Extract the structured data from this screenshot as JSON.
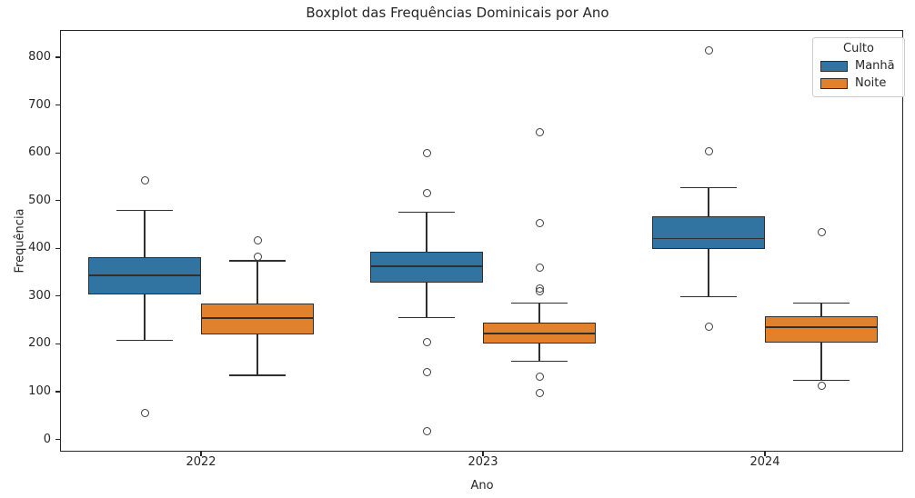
{
  "chart_data": {
    "type": "boxplot",
    "title": "Boxplot das Frequências Dominicais por Ano",
    "xlabel": "Ano",
    "ylabel": "Frequência",
    "categories": [
      "2022",
      "2023",
      "2024"
    ],
    "yticks": [
      0,
      100,
      200,
      300,
      400,
      500,
      600,
      700,
      800
    ],
    "ylim": [
      -26,
      857
    ],
    "grid": false,
    "legend_position": "upper right",
    "edge_color": "#2f2f2f",
    "spine_color": "#262626",
    "flier_color": "#3d3d3d",
    "legend": {
      "title": "Culto",
      "entries": [
        {
          "label": "Manhã",
          "color": "#3274a1"
        },
        {
          "label": "Noite",
          "color": "#e1812c"
        }
      ]
    },
    "series": [
      {
        "name": "Manhã",
        "color": "#3274a1",
        "boxes": [
          {
            "category": "2022",
            "whisker_low": 208,
            "q1": 303,
            "median": 343,
            "q3": 381,
            "whisker_high": 479,
            "outliers": [
              543,
              56
            ]
          },
          {
            "category": "2023",
            "whisker_low": 255,
            "q1": 328,
            "median": 362,
            "q3": 392,
            "whisker_high": 476,
            "outliers": [
              599,
              515,
              203,
              141,
              18
            ]
          },
          {
            "category": "2024",
            "whisker_low": 298,
            "q1": 399,
            "median": 420,
            "q3": 467,
            "whisker_high": 527,
            "outliers": [
              815,
              603,
              235
            ]
          }
        ]
      },
      {
        "name": "Noite",
        "color": "#e1812c",
        "boxes": [
          {
            "category": "2022",
            "whisker_low": 134,
            "q1": 220,
            "median": 254,
            "q3": 284,
            "whisker_high": 374,
            "outliers": [
              416,
              383
            ]
          },
          {
            "category": "2023",
            "whisker_low": 163,
            "q1": 201,
            "median": 222,
            "q3": 244,
            "whisker_high": 286,
            "outliers": [
              643,
              452,
              360,
              315,
              310,
              132,
              97
            ]
          },
          {
            "category": "2024",
            "whisker_low": 123,
            "q1": 203,
            "median": 235,
            "q3": 257,
            "whisker_high": 286,
            "outliers": [
              433,
              112
            ]
          }
        ]
      }
    ]
  }
}
